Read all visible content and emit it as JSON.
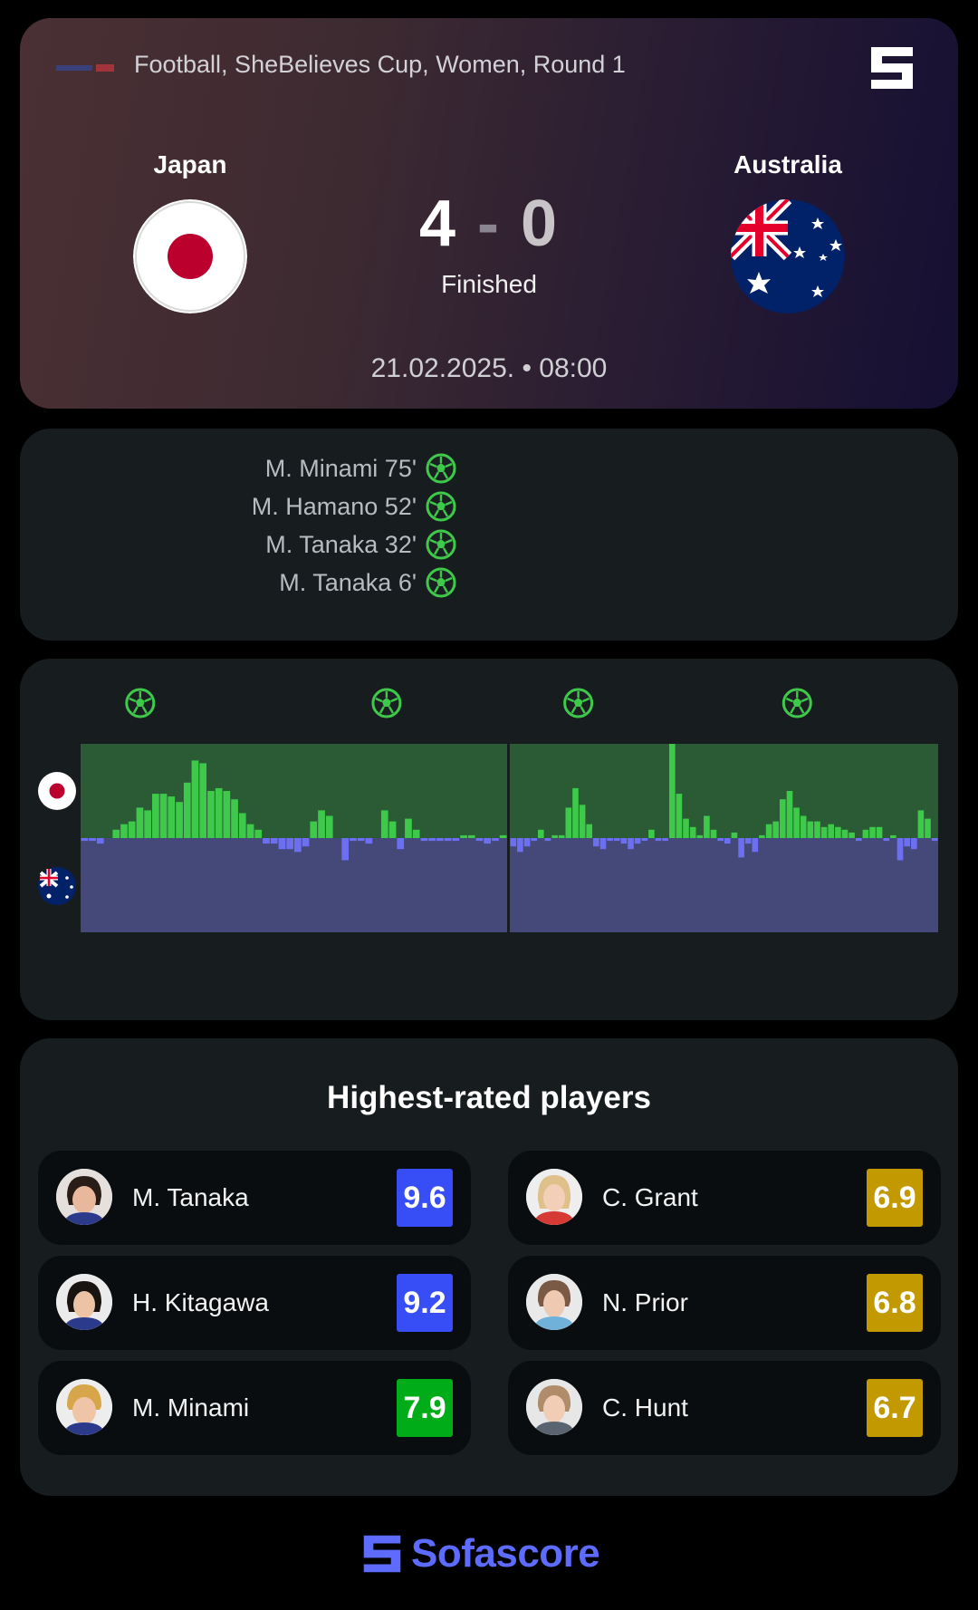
{
  "header": {
    "competition": "Football, SheBelieves Cup, Women, Round 1",
    "home_team": "Japan",
    "away_team": "Australia",
    "home_score": "4",
    "score_separator": "-",
    "away_score": "0",
    "status": "Finished",
    "datetime": "21.02.2025. • 08:00"
  },
  "goals": [
    {
      "scorer": "M. Minami 75'",
      "team": "home"
    },
    {
      "scorer": "M. Hamano 52'",
      "team": "home"
    },
    {
      "scorer": "M. Tanaka 32'",
      "team": "home"
    },
    {
      "scorer": "M. Tanaka 6'",
      "team": "home"
    }
  ],
  "momentum": {
    "home_color": "#3ec94a",
    "away_color": "#6b6ff0",
    "goal_minutes": [
      6,
      32,
      52,
      75
    ],
    "first_half": [
      -1,
      -1,
      -2,
      0,
      3,
      5,
      6,
      11,
      10,
      16,
      16,
      15,
      13,
      20,
      28,
      27,
      17,
      18,
      17,
      14,
      9,
      5,
      3,
      -2,
      -2,
      -4,
      -4,
      -5,
      -3,
      6,
      10,
      8,
      0,
      -8,
      -1,
      -1,
      -2,
      0,
      10,
      6,
      -4,
      7,
      3,
      -1,
      -1,
      -1,
      -1,
      -1,
      1,
      1,
      -1,
      -2,
      -1,
      1
    ],
    "second_half": [
      -3,
      -5,
      -3,
      -1,
      3,
      -1,
      1,
      1,
      11,
      18,
      12,
      5,
      -3,
      -4,
      -1,
      -1,
      -2,
      -4,
      -2,
      -1,
      3,
      -1,
      -1,
      34,
      16,
      7,
      4,
      1,
      8,
      3,
      -1,
      -2,
      2,
      -7,
      -2,
      -5,
      1,
      5,
      6,
      14,
      17,
      11,
      8,
      6,
      6,
      4,
      5,
      4,
      3,
      2,
      -1,
      3,
      4,
      4,
      -1,
      1,
      -8,
      -3,
      -4,
      10,
      7,
      -1
    ]
  },
  "players": {
    "title": "Highest-rated players",
    "home": [
      {
        "name": "M. Tanaka",
        "rating": "9.6",
        "color": "#374df5"
      },
      {
        "name": "H. Kitagawa",
        "rating": "9.2",
        "color": "#374df5"
      },
      {
        "name": "M. Minami",
        "rating": "7.9",
        "color": "#00ad19"
      }
    ],
    "away": [
      {
        "name": "C. Grant",
        "rating": "6.9",
        "color": "#c29a00"
      },
      {
        "name": "N. Prior",
        "rating": "6.8",
        "color": "#c29a00"
      },
      {
        "name": "C. Hunt",
        "rating": "6.7",
        "color": "#c29a00"
      }
    ]
  },
  "footer": {
    "brand": "Sofascore",
    "brand_color": "#5d6bff"
  }
}
